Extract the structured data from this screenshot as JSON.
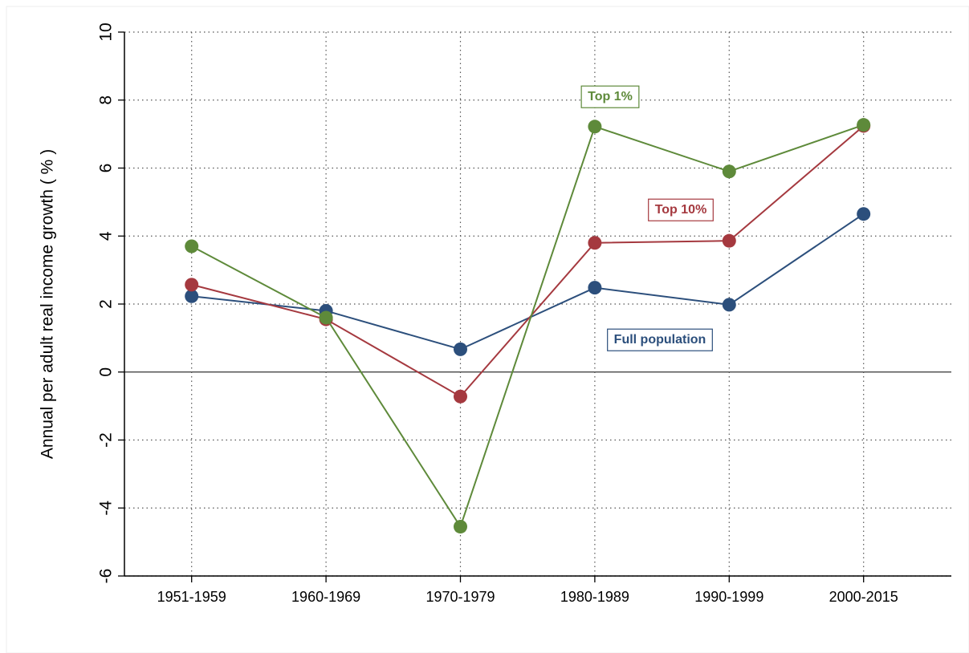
{
  "chart_data": {
    "type": "line",
    "y_label": "Annual per adult real income growth ( % )",
    "categories": [
      "1951-1959",
      "1960-1969",
      "1970-1979",
      "1980-1989",
      "1990-1999",
      "2000-2015"
    ],
    "series": [
      {
        "name": "Full population",
        "color": "#2c4f7c",
        "values": [
          2.23,
          1.8,
          0.67,
          2.48,
          1.98,
          4.65
        ]
      },
      {
        "name": "Top 10%",
        "color": "#a5393f",
        "values": [
          2.57,
          1.55,
          -0.72,
          3.8,
          3.86,
          7.24
        ]
      },
      {
        "name": "Top 1%",
        "color": "#5e8a3a",
        "values": [
          3.7,
          1.6,
          -4.55,
          7.22,
          5.9,
          7.27
        ]
      }
    ],
    "ylim": [
      -6,
      10
    ],
    "yticks": [
      -6,
      -4,
      -2,
      0,
      2,
      4,
      6,
      8,
      10
    ],
    "grid": true
  }
}
